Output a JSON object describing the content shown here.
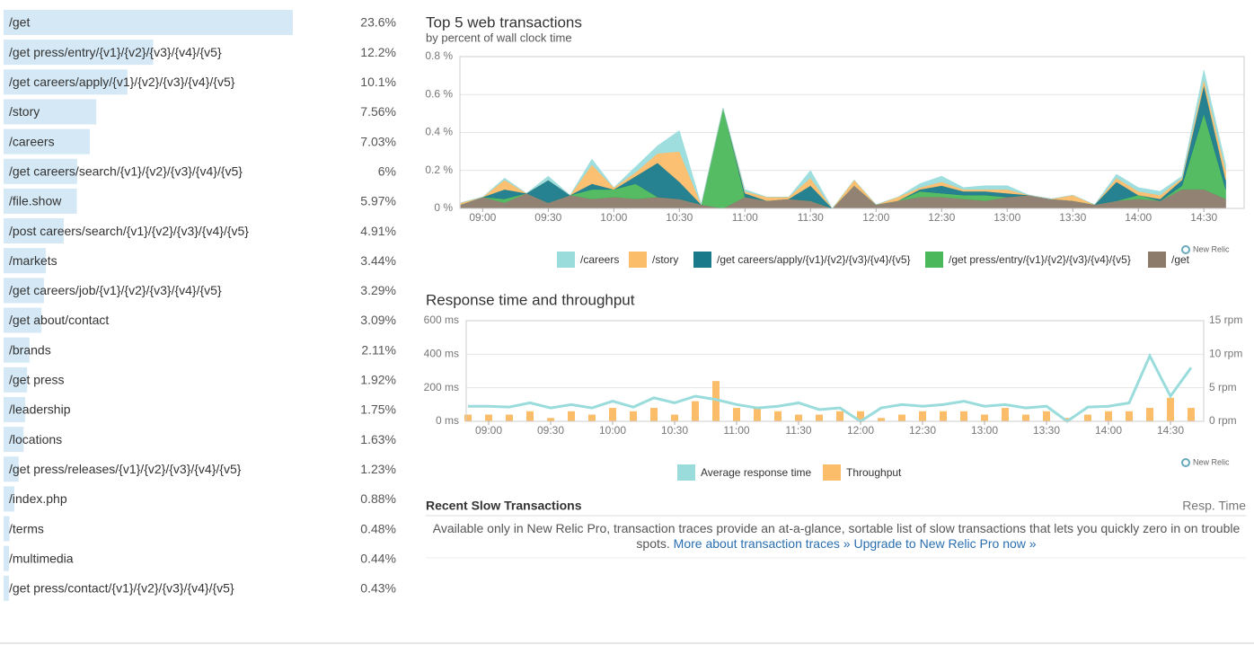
{
  "transactions": {
    "names": [
      "/get",
      "/get press/entry/{v1}/{v2}/{v3}/{v4}/{v5}",
      "/get careers/apply/{v1}/{v2}/{v3}/{v4}/{v5}",
      "/story",
      "/careers",
      "/get careers/search/{v1}/{v2}/{v3}/{v4}/{v5}",
      "/file.show",
      "/post careers/search/{v1}/{v2}/{v3}/{v4}/{v5}",
      "/markets",
      "/get careers/job/{v1}/{v2}/{v3}/{v4}/{v5}",
      "/get about/contact",
      "/brands",
      "/get press",
      "/leadership",
      "/locations",
      "/get press/releases/{v1}/{v2}/{v3}/{v4}/{v5}",
      "/index.php",
      "/terms",
      "/multimedia",
      "/get press/contact/{v1}/{v2}/{v3}/{v4}/{v5}"
    ],
    "values": [
      23.6,
      12.2,
      10.1,
      7.56,
      7.03,
      6,
      5.97,
      4.91,
      3.44,
      3.29,
      3.09,
      2.11,
      1.92,
      1.75,
      1.63,
      1.23,
      0.88,
      0.48,
      0.44,
      0.43
    ],
    "value_labels": [
      "23.6%",
      "12.2%",
      "10.1%",
      "7.56%",
      "7.03%",
      "6%",
      "5.97%",
      "4.91%",
      "3.44%",
      "3.29%",
      "3.09%",
      "2.11%",
      "1.92%",
      "1.75%",
      "1.63%",
      "1.23%",
      "0.88%",
      "0.48%",
      "0.44%",
      "0.43%"
    ],
    "color": "#d4e8f5"
  },
  "chart_data": [
    {
      "type": "stacked_area",
      "title": "Top 5 web transactions",
      "subtitle": "by percent of wall clock time",
      "watermark": "New Relic",
      "x": [
        "08:50",
        "09:00",
        "09:10",
        "09:20",
        "09:30",
        "09:40",
        "09:50",
        "10:00",
        "10:10",
        "10:20",
        "10:30",
        "10:40",
        "10:50",
        "11:00",
        "11:10",
        "11:20",
        "11:30",
        "11:40",
        "11:50",
        "12:00",
        "12:10",
        "12:20",
        "12:30",
        "12:40",
        "12:50",
        "13:00",
        "13:10",
        "13:20",
        "13:30",
        "13:40",
        "13:50",
        "14:00",
        "14:10",
        "14:20",
        "14:30",
        "14:40"
      ],
      "xticks": [
        "09:00",
        "09:30",
        "10:00",
        "10:30",
        "11:00",
        "11:30",
        "12:00",
        "12:30",
        "13:00",
        "13:30",
        "14:00",
        "14:30"
      ],
      "ylim": [
        0,
        0.8
      ],
      "yticks": [
        {
          "value": 0,
          "label": "0 %"
        },
        {
          "value": 0.2,
          "label": "0.2 %"
        },
        {
          "value": 0.4,
          "label": "0.4 %"
        },
        {
          "value": 0.6,
          "label": "0.6 %"
        },
        {
          "value": 0.8,
          "label": "0.8 %"
        }
      ],
      "grid": true,
      "series": [
        {
          "name": "/get",
          "color": "#8c7b6b",
          "values": [
            0.02,
            0.06,
            0.03,
            0.08,
            0.03,
            0.07,
            0.05,
            0.06,
            0.05,
            0.06,
            0.05,
            0.02,
            0,
            0.06,
            0.04,
            0.05,
            0.04,
            0,
            0.12,
            0.02,
            0.04,
            0.06,
            0.06,
            0.05,
            0.04,
            0.06,
            0.07,
            0.05,
            0.04,
            0.02,
            0.04,
            0.05,
            0.04,
            0.1,
            0.1,
            0.05
          ]
        },
        {
          "name": "/get press/entry/{v1}/{v2}/{v3}/{v4}/{v5}",
          "color": "#4cb85c",
          "values": [
            0,
            0,
            0.02,
            0,
            0,
            0,
            0.05,
            0.04,
            0.08,
            0,
            0,
            0,
            0.53,
            0,
            0,
            0,
            0,
            0,
            0,
            0,
            0,
            0.03,
            0.02,
            0.02,
            0.03,
            0,
            0,
            0,
            0,
            0,
            0,
            0.02,
            0,
            0.02,
            0.4,
            0.05
          ]
        },
        {
          "name": "/get careers/apply/{v1}/{v2}/{v3}/{v4}/{v5}",
          "color": "#1a7a8a",
          "values": [
            0,
            0,
            0.05,
            0,
            0.12,
            0,
            0.03,
            0,
            0.04,
            0.18,
            0.09,
            0,
            0,
            0.02,
            0,
            0,
            0.08,
            0,
            0,
            0,
            0,
            0.01,
            0.04,
            0.02,
            0.02,
            0.02,
            0,
            0,
            0,
            0,
            0.1,
            0,
            0.01,
            0.03,
            0.15,
            0.05
          ]
        },
        {
          "name": "/story",
          "color": "#fbbd6a",
          "values": [
            0.01,
            0,
            0.05,
            0,
            0,
            0,
            0.1,
            0.01,
            0.02,
            0.05,
            0.16,
            0,
            0,
            0.01,
            0.02,
            0.01,
            0.04,
            0,
            0.03,
            0,
            0.02,
            0.01,
            0.02,
            0.01,
            0.01,
            0.02,
            0,
            0,
            0.03,
            0,
            0.02,
            0.02,
            0.02,
            0.01,
            0.03,
            0.05
          ]
        },
        {
          "name": "/careers",
          "color": "#9adcdc",
          "values": [
            0,
            0,
            0.01,
            0,
            0.02,
            0,
            0.03,
            0,
            0.03,
            0.04,
            0.11,
            0,
            0,
            0.01,
            0,
            0,
            0.04,
            0,
            0,
            0,
            0,
            0.02,
            0.03,
            0.01,
            0.02,
            0.02,
            0,
            0,
            0,
            0,
            0.02,
            0.02,
            0.02,
            0.01,
            0.05,
            0.03
          ]
        }
      ]
    },
    {
      "type": "bar_line",
      "title": "Response time and throughput",
      "watermark": "New Relic",
      "x": [
        "08:50",
        "09:00",
        "09:10",
        "09:20",
        "09:30",
        "09:40",
        "09:50",
        "10:00",
        "10:10",
        "10:20",
        "10:30",
        "10:40",
        "10:50",
        "11:00",
        "11:10",
        "11:20",
        "11:30",
        "11:40",
        "11:50",
        "12:00",
        "12:10",
        "12:20",
        "12:30",
        "12:40",
        "12:50",
        "13:00",
        "13:10",
        "13:20",
        "13:30",
        "13:40",
        "13:50",
        "14:00",
        "14:10",
        "14:20",
        "14:30",
        "14:40"
      ],
      "xticks": [
        "09:00",
        "09:30",
        "10:00",
        "10:30",
        "11:00",
        "11:30",
        "12:00",
        "12:30",
        "13:00",
        "13:30",
        "14:00",
        "14:30"
      ],
      "ylim": [
        0,
        600
      ],
      "yticks": [
        {
          "value": 0,
          "label": "0 ms"
        },
        {
          "value": 200,
          "label": "200 ms"
        },
        {
          "value": 400,
          "label": "400 ms"
        },
        {
          "value": 600,
          "label": "600 ms"
        }
      ],
      "y2lim": [
        0,
        15
      ],
      "y2ticks": [
        {
          "value": 0,
          "label": "0 rpm"
        },
        {
          "value": 5,
          "label": "5 rpm"
        },
        {
          "value": 10,
          "label": "10 rpm"
        },
        {
          "value": 15,
          "label": "15 rpm"
        }
      ],
      "grid": true,
      "series": [
        {
          "name": "Average response time",
          "color": "#9adcdc",
          "kind": "line",
          "values": [
            90,
            90,
            85,
            110,
            80,
            100,
            80,
            120,
            85,
            140,
            110,
            150,
            130,
            100,
            80,
            90,
            110,
            70,
            80,
            0,
            80,
            100,
            90,
            100,
            120,
            90,
            100,
            80,
            90,
            0,
            85,
            90,
            110,
            390,
            150,
            320
          ]
        },
        {
          "name": "Throughput",
          "color": "#fbbd6a",
          "kind": "bar",
          "axis": "y2",
          "values": [
            1,
            1,
            1,
            1.5,
            0.5,
            1.5,
            1,
            2,
            1.5,
            2,
            1,
            3,
            6,
            2,
            2,
            1.5,
            1,
            1,
            1.5,
            1.5,
            0.5,
            1,
            1.5,
            1.5,
            1.5,
            1,
            2,
            1,
            1.5,
            0.5,
            1,
            1.5,
            1.5,
            2,
            3.5,
            2
          ]
        }
      ]
    }
  ],
  "slow": {
    "title": "Recent Slow Transactions",
    "column": "Resp. Time",
    "text": "Available only in New Relic Pro, transaction traces provide an at-a-glance, sortable list of slow transactions that lets you quickly zero in on trouble spots.",
    "links": [
      "More about transaction traces »",
      "Upgrade to New Relic Pro now »"
    ]
  }
}
